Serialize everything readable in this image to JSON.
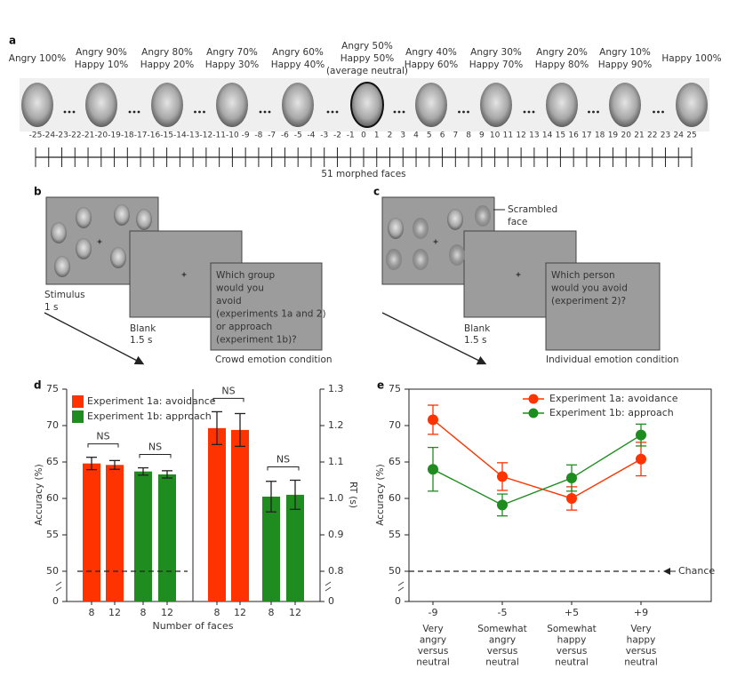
{
  "panel_a": {
    "label": "a",
    "levels": [
      [
        "Angry 100%"
      ],
      [
        "Angry 90%",
        "Happy 10%"
      ],
      [
        "Angry 80%",
        "Happy 20%"
      ],
      [
        "Angry 70%",
        "Happy 30%"
      ],
      [
        "Angry 60%",
        "Happy 40%"
      ],
      [
        "Angry 50%",
        "Happy 50%",
        "(average neutral)"
      ],
      [
        "Angry 40%",
        "Happy 60%"
      ],
      [
        "Angry 30%",
        "Happy 70%"
      ],
      [
        "Angry 20%",
        "Happy 80%"
      ],
      [
        "Angry 10%",
        "Happy 90%"
      ],
      [
        "Happy 100%"
      ]
    ],
    "scale_ticks": [
      -25,
      -24,
      -23,
      -22,
      -21,
      -20,
      -19,
      -18,
      -17,
      -16,
      -15,
      -14,
      -13,
      -12,
      -11,
      -10,
      -9,
      -8,
      -7,
      -6,
      -5,
      -4,
      -3,
      -2,
      -1,
      0,
      1,
      2,
      3,
      4,
      5,
      6,
      7,
      8,
      9,
      10,
      11,
      12,
      13,
      14,
      15,
      16,
      17,
      18,
      19,
      20,
      21,
      22,
      23,
      24,
      25
    ],
    "caption": "51 morphed faces"
  },
  "panel_b": {
    "label": "b",
    "stimulus": [
      "Stimulus",
      "1 s"
    ],
    "blank": [
      "Blank",
      "1.5 s"
    ],
    "question": [
      "Which group",
      "would you",
      "avoid",
      "(experiments 1a and 2)",
      "or approach",
      "(experiment 1b)?"
    ],
    "condition": "Crowd emotion condition"
  },
  "panel_c": {
    "label": "c",
    "stimulus_note": [
      "Scrambled",
      "face"
    ],
    "blank": [
      "Blank",
      "1.5 s"
    ],
    "question": [
      "Which person",
      "would you avoid",
      "(experiment 2)?"
    ],
    "condition": "Individual emotion condition"
  },
  "chart_data": [
    {
      "type": "bar",
      "label": "d",
      "xlabel": "Number of faces",
      "ylabel": "Accuracy (%)",
      "y2label": "RT (s)",
      "categories": [
        "8",
        "12",
        "8",
        "12",
        "8",
        "12",
        "8",
        "12"
      ],
      "series": [
        {
          "name": "Experiment 1a: avoidance",
          "color": "#ff3300",
          "values": [
            64.8,
            64.6,
            null,
            null,
            null,
            null,
            null,
            null
          ],
          "errors": [
            0.85,
            0.6,
            null,
            null,
            null,
            null,
            null,
            null
          ]
        },
        {
          "name": "Experiment 1b: approach",
          "color": "#1e8c1e",
          "values": [
            null,
            null,
            63.7,
            63.3,
            null,
            null,
            null,
            null
          ],
          "errors": [
            null,
            null,
            0.5,
            0.5,
            null,
            null,
            null,
            null
          ]
        },
        {
          "axis": "y2",
          "color": "#ff3300",
          "values": [
            null,
            null,
            null,
            null,
            1.193,
            1.188,
            null,
            null
          ],
          "errors": [
            null,
            null,
            null,
            null,
            0.045,
            0.045,
            null,
            null
          ]
        },
        {
          "axis": "y2",
          "color": "#1e8c1e",
          "values": [
            null,
            null,
            null,
            null,
            null,
            null,
            1.005,
            1.01
          ],
          "errors": [
            null,
            null,
            null,
            null,
            null,
            null,
            0.042,
            0.04
          ]
        }
      ],
      "ylim": [
        0,
        75
      ],
      "yticks": [
        0,
        50,
        55,
        60,
        65,
        70,
        75
      ],
      "axis_break": [
        0,
        50
      ],
      "y2lim": [
        0,
        1.3
      ],
      "y2ticks": [
        0,
        0.8,
        0.9,
        {
          "value": 1,
          "label": "1.0"
        },
        1.1,
        1.2,
        1.3
      ],
      "y2_axis_break": [
        0,
        0.8
      ],
      "hline": 50,
      "annotations": [
        "NS",
        "NS",
        "NS",
        "NS"
      ],
      "legend": "upper left"
    },
    {
      "type": "line",
      "label": "e",
      "ylabel": "Accuracy (%)",
      "categories": [
        "-9",
        "-5",
        "+5",
        "+9"
      ],
      "category_descriptions": [
        [
          "Very",
          "angry",
          "versus",
          "neutral"
        ],
        [
          "Somewhat",
          "angry",
          "versus",
          "neutral"
        ],
        [
          "Somewhat",
          "happy",
          "versus",
          "neutral"
        ],
        [
          "Very",
          "happy",
          "versus",
          "neutral"
        ]
      ],
      "series": [
        {
          "name": "Experiment 1a: avoidance",
          "color": "#ff3300",
          "values": [
            70.8,
            63.0,
            60.0,
            65.4
          ],
          "errors": [
            2.0,
            1.9,
            1.6,
            2.3
          ]
        },
        {
          "name": "Experiment 1b: approach",
          "color": "#1e8c1e",
          "values": [
            64.0,
            59.1,
            62.8,
            68.7
          ],
          "errors": [
            3.0,
            1.5,
            1.8,
            1.5
          ]
        }
      ],
      "ylim": [
        0,
        75
      ],
      "yticks": [
        0,
        50,
        55,
        60,
        65,
        70,
        75
      ],
      "axis_break": [
        0,
        50
      ],
      "hline": 50,
      "hline_label": "Chance",
      "legend": "upper center"
    }
  ]
}
